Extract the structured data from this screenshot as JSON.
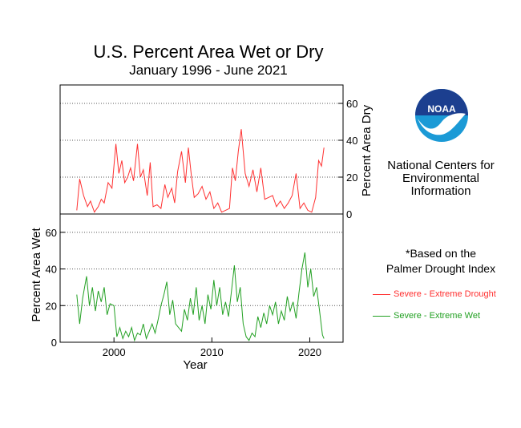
{
  "title": "U.S. Percent Area Wet or Dry",
  "subtitle": "January 1996 - June 2021",
  "agency": [
    "National Centers for",
    "Environmental",
    "Information"
  ],
  "logo_text": "NOAA",
  "note": [
    "*Based on the",
    "Palmer Drought Index"
  ],
  "colors": {
    "dry": "#ff3030",
    "wet": "#22a022"
  },
  "chart_data": [
    {
      "type": "line",
      "series": [
        {
          "name": "Severe - Extreme Drought",
          "color": "#ff3030",
          "x": [
            1996.2,
            1996.5,
            1996.9,
            1997.3,
            1997.6,
            1998.0,
            1998.4,
            1998.7,
            1999.0,
            1999.4,
            1999.8,
            2000.2,
            2000.5,
            2000.8,
            2001.1,
            2001.4,
            2001.7,
            2002.0,
            2002.4,
            2002.7,
            2003.0,
            2003.4,
            2003.7,
            2004.0,
            2004.4,
            2004.8,
            2005.2,
            2005.5,
            2005.9,
            2006.2,
            2006.5,
            2006.9,
            2007.3,
            2007.6,
            2007.9,
            2008.2,
            2008.6,
            2009.0,
            2009.4,
            2009.8,
            2010.2,
            2010.6,
            2011.0,
            2011.4,
            2011.8,
            2012.1,
            2012.4,
            2012.7,
            2013.0,
            2013.4,
            2013.8,
            2014.2,
            2014.6,
            2015.0,
            2015.4,
            2015.8,
            2016.2,
            2016.6,
            2017.0,
            2017.4,
            2017.8,
            2018.2,
            2018.6,
            2019.0,
            2019.4,
            2019.8,
            2020.2,
            2020.6,
            2020.9,
            2021.2,
            2021.45
          ],
          "y": [
            2,
            19,
            10,
            4,
            7,
            1,
            4,
            8,
            6,
            17,
            14,
            38,
            22,
            29,
            17,
            20,
            25,
            18,
            38,
            20,
            24,
            10,
            28,
            4,
            5,
            3,
            16,
            9,
            14,
            6,
            23,
            34,
            17,
            36,
            21,
            9,
            11,
            15,
            8,
            12,
            3,
            6,
            1,
            2,
            3,
            25,
            18,
            34,
            46,
            22,
            15,
            24,
            12,
            25,
            8,
            9,
            10,
            4,
            7,
            3,
            6,
            10,
            22,
            3,
            6,
            2,
            1,
            9,
            29,
            26,
            36
          ]
        }
      ],
      "ylim": [
        0,
        70
      ],
      "yticks": [
        0,
        20,
        40,
        60
      ],
      "ylabel": "Percent Area Dry",
      "xlim": [
        1994.5,
        2023.4
      ],
      "grid": true
    },
    {
      "type": "line",
      "series": [
        {
          "name": "Severe - Extreme Wet",
          "color": "#22a022",
          "x": [
            1996.2,
            1996.5,
            1996.8,
            1997.2,
            1997.5,
            1997.8,
            1998.1,
            1998.4,
            1998.7,
            1999.0,
            1999.3,
            1999.6,
            2000.0,
            2000.3,
            2000.6,
            2000.9,
            2001.2,
            2001.5,
            2001.8,
            2002.1,
            2002.4,
            2002.7,
            2003.0,
            2003.3,
            2003.6,
            2003.9,
            2004.2,
            2004.5,
            2004.8,
            2005.1,
            2005.4,
            2005.7,
            2006.0,
            2006.3,
            2006.6,
            2006.9,
            2007.2,
            2007.5,
            2007.8,
            2008.1,
            2008.4,
            2008.7,
            2009.0,
            2009.3,
            2009.6,
            2009.9,
            2010.2,
            2010.5,
            2010.8,
            2011.1,
            2011.4,
            2011.7,
            2012.0,
            2012.3,
            2012.6,
            2012.9,
            2013.2,
            2013.5,
            2013.8,
            2014.1,
            2014.4,
            2014.7,
            2015.0,
            2015.3,
            2015.6,
            2015.9,
            2016.2,
            2016.5,
            2016.8,
            2017.1,
            2017.4,
            2017.7,
            2018.0,
            2018.3,
            2018.6,
            2018.9,
            2019.2,
            2019.5,
            2019.8,
            2020.1,
            2020.4,
            2020.7,
            2021.0,
            2021.3,
            2021.45
          ],
          "y": [
            26,
            10,
            24,
            36,
            20,
            30,
            17,
            28,
            22,
            30,
            15,
            21,
            20,
            3,
            8,
            2,
            6,
            3,
            8,
            1,
            5,
            4,
            10,
            2,
            6,
            10,
            5,
            12,
            20,
            26,
            33,
            15,
            23,
            10,
            8,
            6,
            18,
            12,
            24,
            15,
            30,
            12,
            20,
            10,
            26,
            18,
            34,
            20,
            30,
            15,
            22,
            14,
            28,
            42,
            22,
            30,
            10,
            3,
            1,
            5,
            3,
            14,
            8,
            16,
            10,
            20,
            15,
            22,
            10,
            17,
            12,
            25,
            17,
            22,
            13,
            27,
            40,
            49,
            30,
            40,
            25,
            30,
            17,
            4,
            2
          ]
        }
      ],
      "ylim": [
        0,
        70
      ],
      "yticks": [
        0,
        20,
        40,
        60
      ],
      "ylabel": "Percent Area Wet",
      "xlim": [
        1994.5,
        2023.4
      ],
      "xticks": [
        2000,
        2010,
        2020
      ],
      "xlabel": "Year",
      "grid": true
    }
  ]
}
